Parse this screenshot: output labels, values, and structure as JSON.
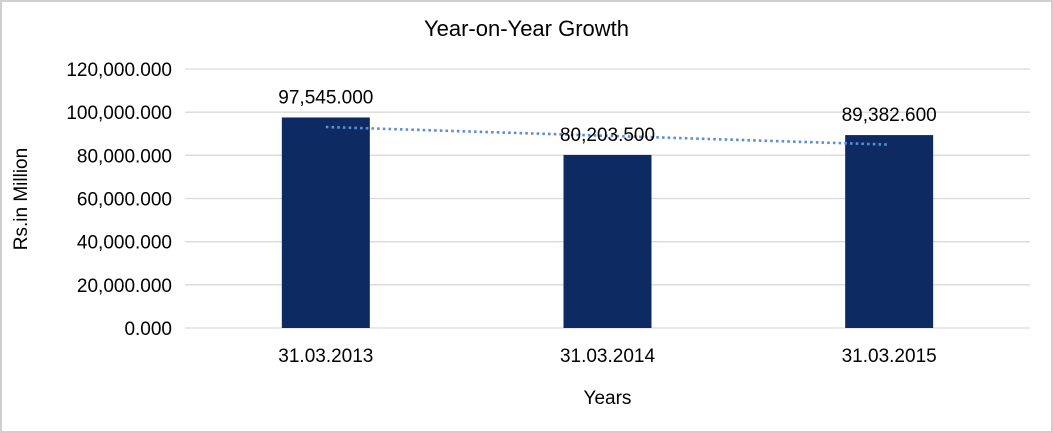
{
  "chart_data": {
    "type": "bar",
    "title": "Year-on-Year Growth",
    "xlabel": "Years",
    "ylabel": "Rs.in Million",
    "categories": [
      "31.03.2013",
      "31.03.2014",
      "31.03.2015"
    ],
    "series": [
      {
        "name": "Rs.in Million",
        "values": [
          97545.0,
          80203.5,
          89382.6
        ],
        "value_labels": [
          "97,545.000",
          "80,203.500",
          "89,382.600"
        ]
      }
    ],
    "ylim": [
      0,
      120000
    ],
    "ytick_step": 20000,
    "ytick_labels": [
      "0.000",
      "20,000.000",
      "40,000.000",
      "60,000.000",
      "80,000.000",
      "100,000.000",
      "120,000.000"
    ],
    "grid": true,
    "legend": false,
    "trendline": {
      "type": "linear",
      "style": "dotted",
      "endpoints_values": [
        93124.9,
        84962.5
      ]
    },
    "colors": {
      "bar": "#0d2a63",
      "trendline": "#5b8fd0",
      "gridline": "#d9d9d9",
      "text": "#000000",
      "frame_border": "#cfcfcf",
      "background": "#ffffff"
    }
  }
}
